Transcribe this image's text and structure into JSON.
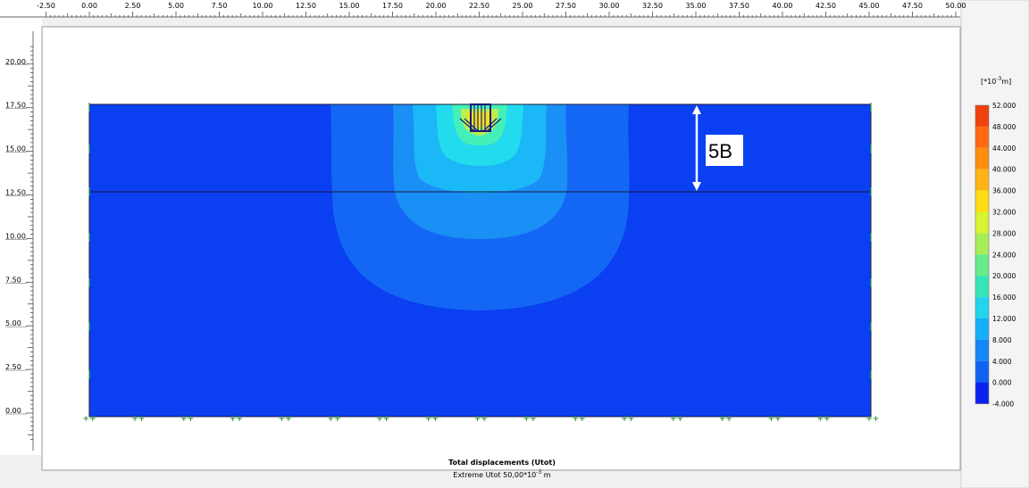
{
  "ruler_x": {
    "labels": [
      "-2.50",
      "0.00",
      "2.50",
      "5.00",
      "7.50",
      "10.00",
      "12.50",
      "15.00",
      "17.50",
      "20.00",
      "22.50",
      "25.00",
      "27.50",
      "30.00",
      "32.50",
      "35.00",
      "37.50",
      "40.00",
      "42.50",
      "45.00",
      "47.50",
      "50.00"
    ]
  },
  "ruler_y": {
    "labels": [
      "0.00",
      "2.50",
      "5.00",
      "7.50",
      "10.00",
      "12.50",
      "15.00",
      "17.50",
      "20.00"
    ]
  },
  "legend": {
    "unit_prefix": "[*10",
    "unit_exp": "-3",
    "unit_suffix": "m]",
    "labels": [
      "52.000",
      "48.000",
      "44.000",
      "40.000",
      "36.000",
      "32.000",
      "28.000",
      "24.000",
      "20.000",
      "16.000",
      "12.000",
      "8.000",
      "4.000",
      "0.000",
      "-4.000"
    ]
  },
  "annotation": "5B",
  "caption": {
    "title": "Total displacements (Utot)",
    "subtitle_prefix": "Extreme Utot 50,00*10",
    "subtitle_exp": "-3",
    "subtitle_suffix": " m"
  }
}
